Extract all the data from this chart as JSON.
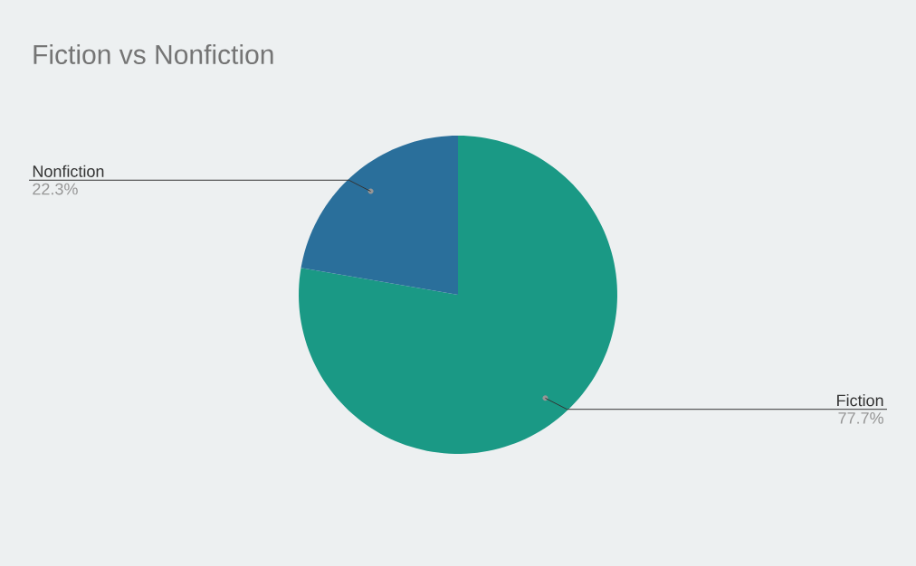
{
  "chart_data": {
    "type": "pie",
    "title": "Fiction vs Nonfiction",
    "categories": [
      "Fiction",
      "Nonfiction"
    ],
    "values": [
      77.7,
      22.3
    ],
    "colors": [
      "#1a9985",
      "#2a6f9b"
    ],
    "value_labels": [
      "77.7%",
      "22.3%"
    ],
    "legend": false
  }
}
